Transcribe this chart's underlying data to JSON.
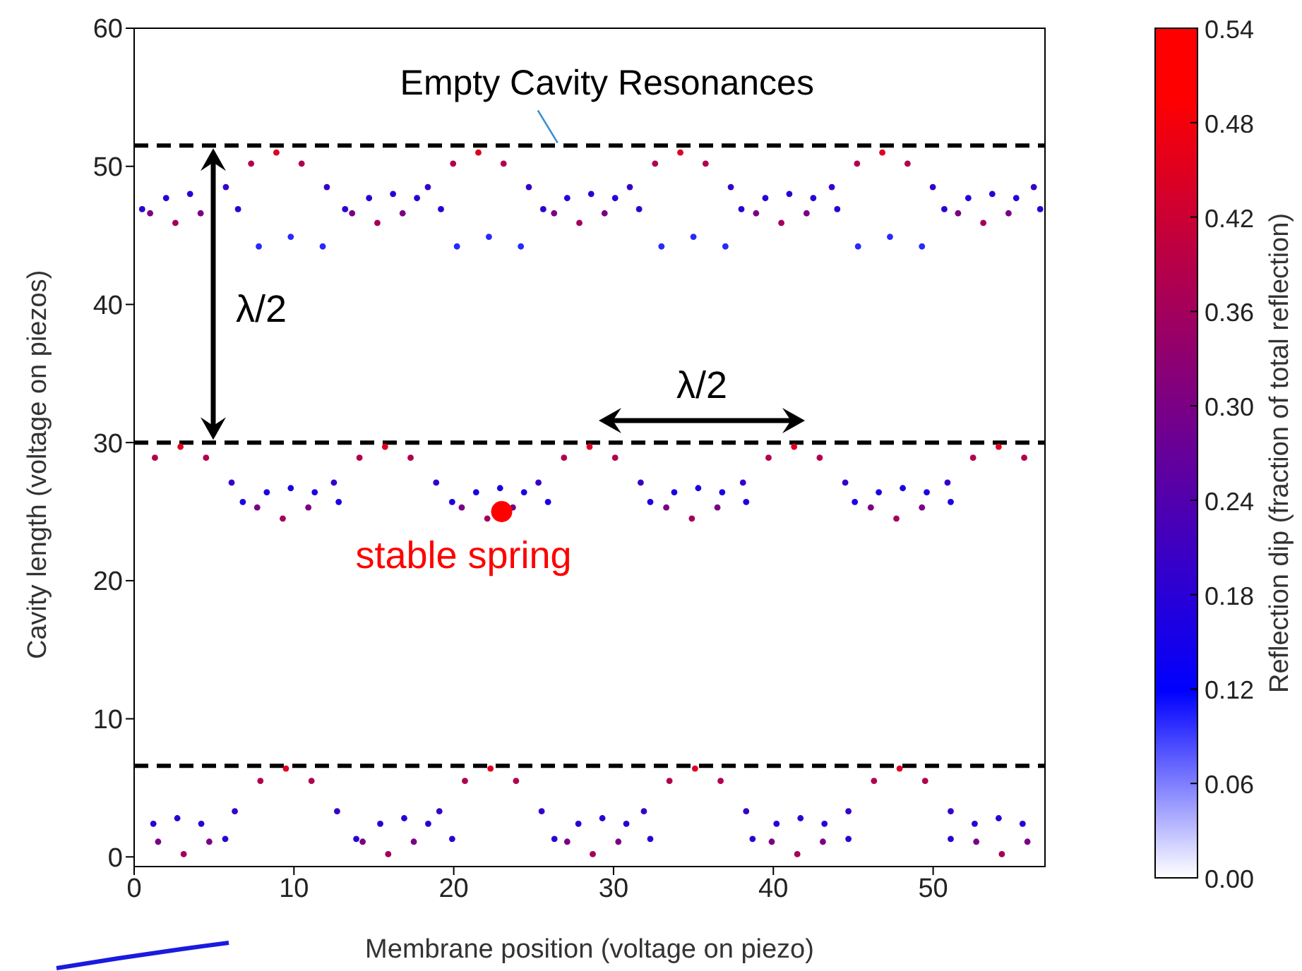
{
  "chart_data": {
    "type": "scatter",
    "xlabel": "Membrane position (voltage on piezo)",
    "ylabel": "Cavity length (voltage on piezos)",
    "clabel": "Reflection dip (fraction of total reflection)",
    "xlim": [
      0,
      57
    ],
    "ylim": [
      -0.7,
      60
    ],
    "xticks": [
      0,
      10,
      20,
      30,
      40,
      50
    ],
    "yticks": [
      0,
      10,
      20,
      30,
      40,
      50,
      60
    ],
    "clim": [
      0,
      0.54
    ],
    "cticks": [
      {
        "value": 0,
        "label": "0.00"
      },
      {
        "value": 0.06,
        "label": "0.06"
      },
      {
        "value": 0.12,
        "label": "0.12"
      },
      {
        "value": 0.18,
        "label": "0.18"
      },
      {
        "value": 0.24,
        "label": "0.24"
      },
      {
        "value": 0.3,
        "label": "0.30"
      },
      {
        "value": 0.36,
        "label": "0.36"
      },
      {
        "value": 0.42,
        "label": "0.42"
      },
      {
        "value": 0.48,
        "label": "0.48"
      },
      {
        "value": 0.54,
        "label": "0.54"
      }
    ],
    "grid": false,
    "legend": false,
    "marker": "circle",
    "ref_lines": [
      {
        "axis": "y",
        "value": 51.5,
        "color": "#000000",
        "line_style": "dashed"
      },
      {
        "axis": "y",
        "value": 30,
        "color": "#000000",
        "line_style": "dashed"
      },
      {
        "axis": "y",
        "value": 6.6,
        "color": "#000000",
        "line_style": "dashed"
      }
    ],
    "annotations": [
      {
        "text": "Empty Cavity Resonances",
        "x": 26.5,
        "y": 51.5
      },
      "λ/2",
      "λ/2",
      {
        "text": "stable spring",
        "x": 23,
        "y": 25
      }
    ],
    "series": [
      {
        "x": [
          8.9,
          21.54,
          34.18,
          46.82
        ],
        "values": [
          51.0,
          51.0,
          51.0,
          51.0
        ],
        "cvalues": [
          0.45,
          0.45,
          0.45,
          0.45
        ]
      },
      {
        "x": [
          7.32,
          10.48,
          19.96,
          23.12,
          32.6,
          35.76,
          45.24,
          48.4
        ],
        "values": [
          50.2,
          50.2,
          50.2,
          50.2,
          50.2,
          50.2,
          50.2,
          50.2
        ],
        "cvalues": [
          0.38,
          0.38,
          0.38,
          0.38,
          0.38,
          0.38,
          0.38,
          0.38
        ]
      },
      {
        "x": [
          5.74,
          12.06,
          18.38,
          24.7,
          31.02,
          37.34,
          43.66,
          49.98,
          56.3
        ],
        "values": [
          48.5,
          48.5,
          48.5,
          48.5,
          48.5,
          48.5,
          48.5,
          48.5,
          48.5
        ],
        "cvalues": [
          0.2,
          0.2,
          0.2,
          0.2,
          0.2,
          0.2,
          0.2,
          0.2,
          0.2
        ]
      },
      {
        "x": [
          1.0,
          4.16,
          13.64,
          16.8,
          26.28,
          29.44,
          38.92,
          42.08,
          51.56,
          54.72
        ],
        "values": [
          46.6,
          46.6,
          46.6,
          46.6,
          46.6,
          46.6,
          46.6,
          46.6,
          46.6,
          46.6
        ],
        "cvalues": [
          0.3,
          0.3,
          0.3,
          0.3,
          0.3,
          0.3,
          0.3,
          0.3,
          0.3,
          0.3
        ]
      },
      {
        "x": [
          2.58,
          15.22,
          27.86,
          40.5,
          53.14
        ],
        "values": [
          45.9,
          45.9,
          45.9,
          45.9,
          45.9
        ],
        "cvalues": [
          0.36,
          0.36,
          0.36,
          0.36,
          0.36
        ]
      },
      {
        "x": [
          2.9,
          15.7,
          28.5,
          41.3,
          54.1
        ],
        "values": [
          29.7,
          29.7,
          29.7,
          29.7,
          29.7
        ],
        "cvalues": [
          0.45,
          0.45,
          0.45,
          0.45,
          0.45
        ]
      },
      {
        "x": [
          1.3,
          4.5,
          14.1,
          17.3,
          26.9,
          30.1,
          39.7,
          42.9,
          52.5,
          55.7
        ],
        "values": [
          28.9,
          28.9,
          28.9,
          28.9,
          28.9,
          28.9,
          28.9,
          28.9,
          28.9,
          28.9
        ],
        "cvalues": [
          0.38,
          0.38,
          0.38,
          0.38,
          0.38,
          0.38,
          0.38,
          0.38,
          0.38,
          0.38
        ]
      },
      {
        "x": [
          6.1,
          12.5,
          18.9,
          25.3,
          31.7,
          38.1,
          44.5,
          50.9
        ],
        "values": [
          27.1,
          27.1,
          27.1,
          27.1,
          27.1,
          27.1,
          27.1,
          27.1
        ],
        "cvalues": [
          0.2,
          0.2,
          0.2,
          0.2,
          0.2,
          0.2,
          0.2,
          0.2
        ]
      },
      {
        "x": [
          7.7,
          10.9,
          20.5,
          23.7,
          33.3,
          36.5,
          46.1,
          49.3
        ],
        "values": [
          25.3,
          25.3,
          25.3,
          25.3,
          25.3,
          25.3,
          25.3,
          25.3
        ],
        "cvalues": [
          0.3,
          0.3,
          0.3,
          0.3,
          0.3,
          0.3,
          0.3,
          0.3
        ]
      },
      {
        "x": [
          9.3,
          22.1,
          34.9,
          47.7
        ],
        "values": [
          24.5,
          24.5,
          24.5,
          24.5
        ],
        "cvalues": [
          0.36,
          0.36,
          0.36,
          0.36
        ]
      },
      {
        "x": [
          9.5,
          22.3,
          35.1,
          47.9
        ],
        "values": [
          6.4,
          6.4,
          6.4,
          6.4
        ],
        "cvalues": [
          0.45,
          0.45,
          0.45,
          0.45
        ]
      },
      {
        "x": [
          7.9,
          11.1,
          20.7,
          23.9,
          33.5,
          36.7,
          46.3,
          49.5
        ],
        "values": [
          5.5,
          5.5,
          5.5,
          5.5,
          5.5,
          5.5,
          5.5,
          5.5
        ],
        "cvalues": [
          0.38,
          0.38,
          0.38,
          0.38,
          0.38,
          0.38,
          0.38,
          0.38
        ]
      },
      {
        "x": [
          6.3,
          12.7,
          19.1,
          25.5,
          31.9,
          38.3,
          44.7,
          51.1
        ],
        "values": [
          3.3,
          3.3,
          3.3,
          3.3,
          3.3,
          3.3,
          3.3,
          3.3
        ],
        "cvalues": [
          0.2,
          0.2,
          0.2,
          0.2,
          0.2,
          0.2,
          0.2,
          0.2
        ]
      },
      {
        "x": [
          1.5,
          4.7,
          14.3,
          17.5,
          27.1,
          30.3,
          39.9,
          43.1,
          52.7,
          55.9
        ],
        "values": [
          1.1,
          1.1,
          1.1,
          1.1,
          1.1,
          1.1,
          1.1,
          1.1,
          1.1,
          1.1
        ],
        "cvalues": [
          0.3,
          0.3,
          0.3,
          0.3,
          0.3,
          0.3,
          0.3,
          0.3,
          0.3,
          0.3
        ]
      },
      {
        "x": [
          3.1,
          15.9,
          28.7,
          41.5,
          54.3
        ],
        "values": [
          0.2,
          0.2,
          0.2,
          0.2,
          0.2
        ],
        "cvalues": [
          0.36,
          0.36,
          0.36,
          0.36,
          0.36
        ]
      },
      {
        "x": [
          0.5,
          2,
          3.5,
          5,
          6.5,
          13.2,
          14.7,
          16.2,
          17.7,
          19.2,
          25.6,
          27.1,
          28.6,
          30.1,
          31.6,
          38,
          39.5,
          41,
          42.5,
          44,
          50.7,
          52.2,
          53.7,
          55.2,
          56.7
        ],
        "values": [
          46.9,
          47.7,
          48.0,
          null,
          46.9,
          46.9,
          47.7,
          48.0,
          47.7,
          46.9,
          46.9,
          47.7,
          48.0,
          47.7,
          46.9,
          46.9,
          47.7,
          48.0,
          47.7,
          46.9,
          46.9,
          47.7,
          48.0,
          47.7,
          46.9
        ],
        "cvalues": [
          0.18,
          0.18,
          0.18,
          null,
          0.18,
          0.18,
          0.18,
          0.18,
          0.18,
          0.18,
          0.18,
          0.18,
          0.18,
          0.18,
          0.18,
          0.18,
          0.18,
          0.18,
          0.18,
          0.18,
          0.18,
          0.18,
          0.18,
          0.18,
          0.18
        ]
      },
      {
        "x": [
          6.8,
          8.3,
          9.8,
          11.3,
          12.8,
          19.9,
          21.4,
          22.9,
          24.4,
          25.9,
          32.3,
          33.8,
          35.3,
          36.8,
          38.3,
          45.1,
          46.6,
          48.1,
          49.6,
          51.1
        ],
        "values": [
          25.7,
          26.4,
          26.7,
          26.4,
          25.7,
          25.7,
          26.4,
          26.7,
          26.4,
          25.7,
          25.7,
          26.4,
          26.7,
          26.4,
          25.7,
          25.7,
          26.4,
          26.7,
          26.4,
          25.7
        ],
        "cvalues": [
          0.16,
          0.16,
          0.16,
          0.16,
          0.16,
          0.16,
          0.16,
          0.16,
          0.16,
          0.16,
          0.16,
          0.16,
          0.16,
          0.16,
          0.16,
          0.16,
          0.16,
          0.16,
          0.16,
          0.16
        ]
      },
      {
        "x": [
          1.2,
          2.7,
          4.2,
          5.7,
          13.9,
          15.4,
          16.9,
          18.4,
          19.9,
          26.3,
          27.8,
          29.3,
          30.8,
          32.3,
          38.7,
          40.2,
          41.7,
          43.2,
          44.7,
          51.1,
          52.6,
          54.1,
          55.6
        ],
        "values": [
          2.4,
          2.8,
          2.4,
          1.3,
          1.3,
          2.4,
          2.8,
          2.4,
          1.3,
          1.3,
          2.4,
          2.8,
          2.4,
          1.3,
          1.3,
          2.4,
          2.8,
          2.4,
          1.3,
          1.3,
          2.4,
          2.8,
          2.4
        ],
        "cvalues": [
          0.18,
          0.18,
          0.18,
          0.18,
          0.18,
          0.18,
          0.18,
          0.18,
          0.18,
          0.18,
          0.18,
          0.18,
          0.18,
          0.18,
          0.18,
          0.18,
          0.18,
          0.18,
          0.18,
          0.18,
          0.18,
          0.18,
          0.18
        ]
      },
      {
        "x": [
          7.8,
          9.8,
          11.8,
          20.2,
          22.2,
          24.2,
          33,
          35,
          37,
          45.3,
          47.3,
          49.3
        ],
        "values": [
          44.2,
          44.9,
          44.2,
          44.2,
          44.9,
          44.2,
          44.2,
          44.9,
          44.2,
          44.2,
          44.9,
          44.2
        ],
        "cvalues": [
          0.1,
          0.1,
          0.1,
          0.1,
          0.1,
          0.1,
          0.1,
          0.1,
          0.1,
          0.1,
          0.1,
          0.1
        ]
      }
    ]
  }
}
